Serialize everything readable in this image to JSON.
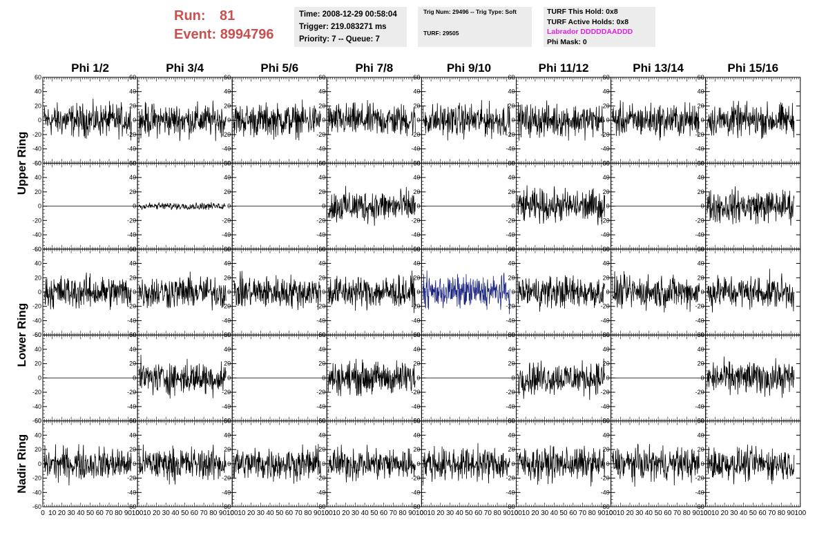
{
  "header": {
    "run_label": "Run:",
    "run_value": "81",
    "event_label": "Event:",
    "event_value": "8994796",
    "time": "Time: 2008-12-29 00:58:04",
    "trigger": "Trigger: 219.083271 ms",
    "priority": "Priority: 7 -- Queue: 7",
    "trig_num": "Trig Num: 29496 -- Trig Type: Soft",
    "turf": "TURF: 29505",
    "turf_hold": "TURF This Hold: 0x8",
    "turf_active": "TURF Active Holds: 0x8",
    "labrador": "Labrador DDDDDAADDD",
    "phi_mask": "Phi Mask: 0"
  },
  "colors": {
    "run_text": "#c8504e",
    "labrador_text": "#e020e0",
    "highlight_trace": "#1a237e",
    "trace": "#000000",
    "info_bg": "#ececec"
  },
  "chart_data": {
    "type": "line",
    "columns": [
      "Phi 1/2",
      "Phi 3/4",
      "Phi 5/6",
      "Phi 7/8",
      "Phi 9/10",
      "Phi 11/12",
      "Phi 13/14",
      "Phi 15/16"
    ],
    "row_labels": [
      "Upper Ring",
      "Lower Ring",
      "Nadir Ring"
    ],
    "ylim": [
      -60,
      60
    ],
    "xlim": [
      0,
      100
    ],
    "yticks": [
      "-60",
      "-40",
      "-20",
      "0",
      "20",
      "40",
      "60"
    ],
    "xticks": [
      "0",
      "10",
      "20",
      "30",
      "40",
      "50",
      "60",
      "70",
      "80",
      "90",
      "100"
    ],
    "samples": 260,
    "waveforms": [
      [
        "noise",
        "noise",
        "noise",
        "noise",
        "noise",
        "noise",
        "noise",
        "noise"
      ],
      [
        "flat",
        "small",
        "flat",
        "noise",
        "flat",
        "noise",
        "flat",
        "noise"
      ],
      [
        "noise",
        "noise",
        "noise",
        "noise",
        "highlight",
        "noise",
        "noise",
        "noise"
      ],
      [
        "flat",
        "noise",
        "flat",
        "noise",
        "flat",
        "noise",
        "flat",
        "noise"
      ],
      [
        "noise",
        "noise",
        "noise",
        "noise",
        "noise",
        "noise",
        "noise",
        "noise"
      ]
    ],
    "amplitude": 14,
    "small_amplitude": 3
  }
}
